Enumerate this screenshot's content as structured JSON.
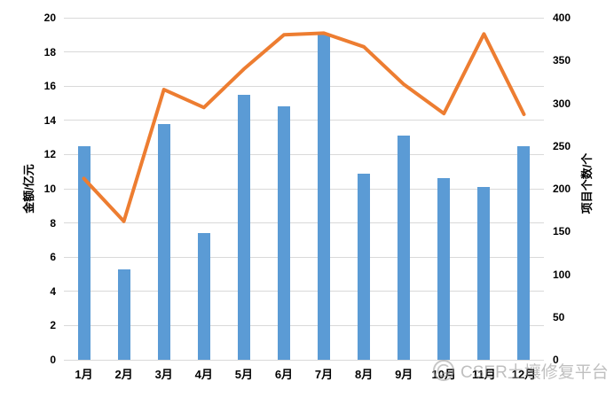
{
  "chart_data": {
    "type": "bar",
    "subtype": "combo-bar-line",
    "title": "",
    "categories": [
      "1月",
      "2月",
      "3月",
      "4月",
      "5月",
      "6月",
      "7月",
      "8月",
      "9月",
      "10月",
      "11月",
      "12月"
    ],
    "series": [
      {
        "name": "金额",
        "chart": "bar",
        "axis": "left",
        "color": "#5B9BD5",
        "values": [
          12.5,
          5.3,
          13.8,
          7.4,
          15.5,
          14.8,
          19.0,
          10.9,
          13.1,
          10.6,
          10.1,
          12.5
        ]
      },
      {
        "name": "项目个数",
        "chart": "line",
        "axis": "right",
        "color": "#ED7D31",
        "values": [
          212,
          162,
          316,
          295,
          340,
          380,
          382,
          366,
          322,
          288,
          381,
          287
        ]
      }
    ],
    "left_axis": {
      "title": "金额/亿元",
      "min": 0,
      "max": 20,
      "step": 2,
      "ticks": [
        "0",
        "2",
        "4",
        "6",
        "8",
        "10",
        "12",
        "14",
        "16",
        "18",
        "20"
      ]
    },
    "right_axis": {
      "title": "项目个数/个",
      "min": 0,
      "max": 400,
      "step": 50,
      "ticks": [
        "0",
        "50",
        "100",
        "150",
        "200",
        "250",
        "300",
        "350",
        "400"
      ]
    },
    "gridlines": "horizontal",
    "legend": "none"
  },
  "watermark": {
    "logo": "cser-logo-icon",
    "text": "CSER土壤修复平台"
  },
  "colors": {
    "bar": "#5B9BD5",
    "line": "#ED7D31",
    "grid": "#D9D9D9",
    "text": "#000000",
    "watermark": "#8C8C8C",
    "background": "#FFFFFF"
  }
}
